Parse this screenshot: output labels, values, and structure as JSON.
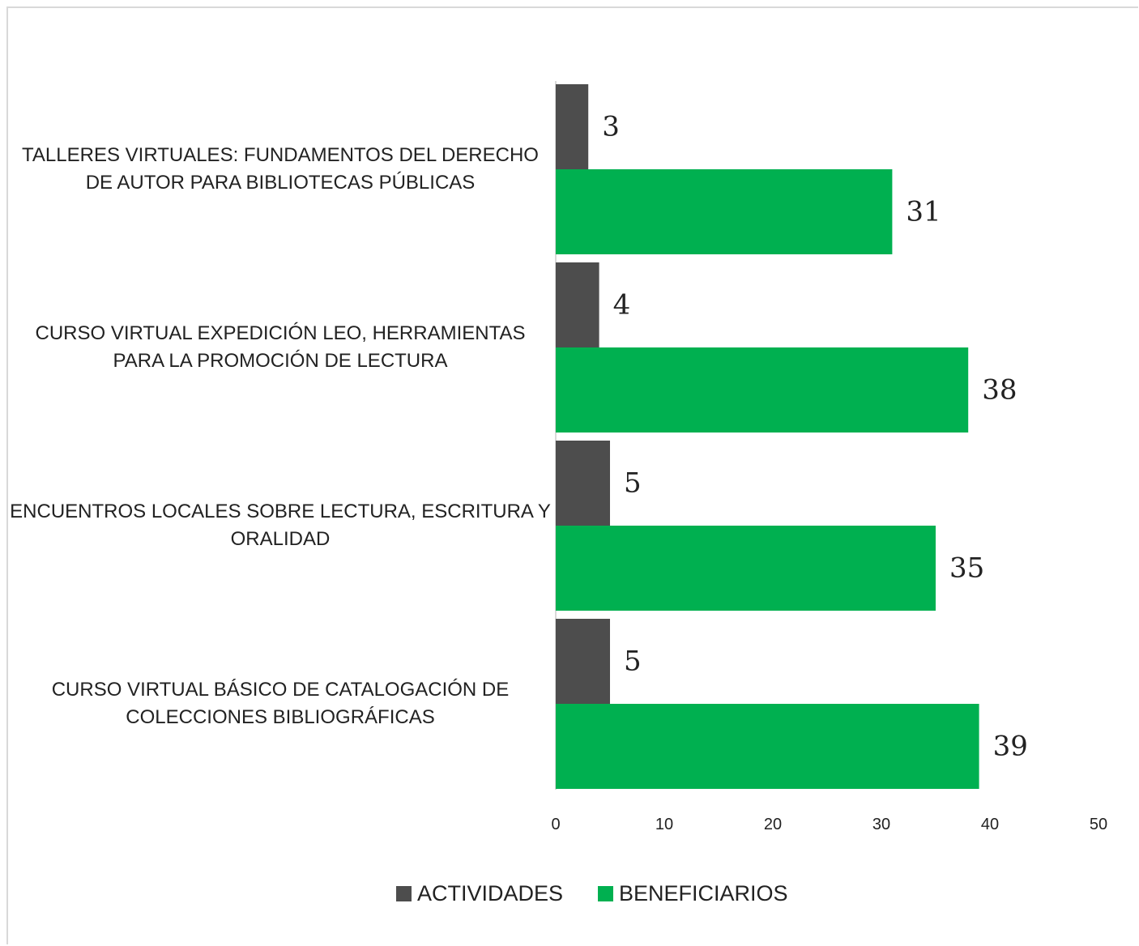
{
  "chart_data": {
    "type": "bar",
    "orientation": "horizontal",
    "title": "",
    "xlabel": "",
    "ylabel": "",
    "categories": [
      [
        "TALLERES VIRTUALES: FUNDAMENTOS DEL DERECHO",
        "DE AUTOR PARA BIBLIOTECAS PÚBLICAS"
      ],
      [
        "CURSO VIRTUAL EXPEDICIÓN LEO, HERRAMIENTAS",
        "PARA LA PROMOCIÓN DE LECTURA"
      ],
      [
        "ENCUENTROS LOCALES SOBRE LECTURA, ESCRITURA Y",
        "ORALIDAD"
      ],
      [
        "CURSO VIRTUAL BÁSICO DE CATALOGACIÓN DE",
        "COLECCIONES BIBLIOGRÁFICAS"
      ]
    ],
    "series": [
      {
        "name": "ACTIVIDADES",
        "color": "#4d4d4d",
        "values": [
          3,
          4,
          5,
          5
        ]
      },
      {
        "name": "BENEFICIARIOS",
        "color": "#00b050",
        "values": [
          31,
          38,
          35,
          39
        ]
      }
    ],
    "xlim": [
      0,
      50
    ],
    "xticks": [
      "0",
      "10",
      "20",
      "30",
      "40",
      "50"
    ],
    "grid": false,
    "legend_position": "bottom"
  }
}
